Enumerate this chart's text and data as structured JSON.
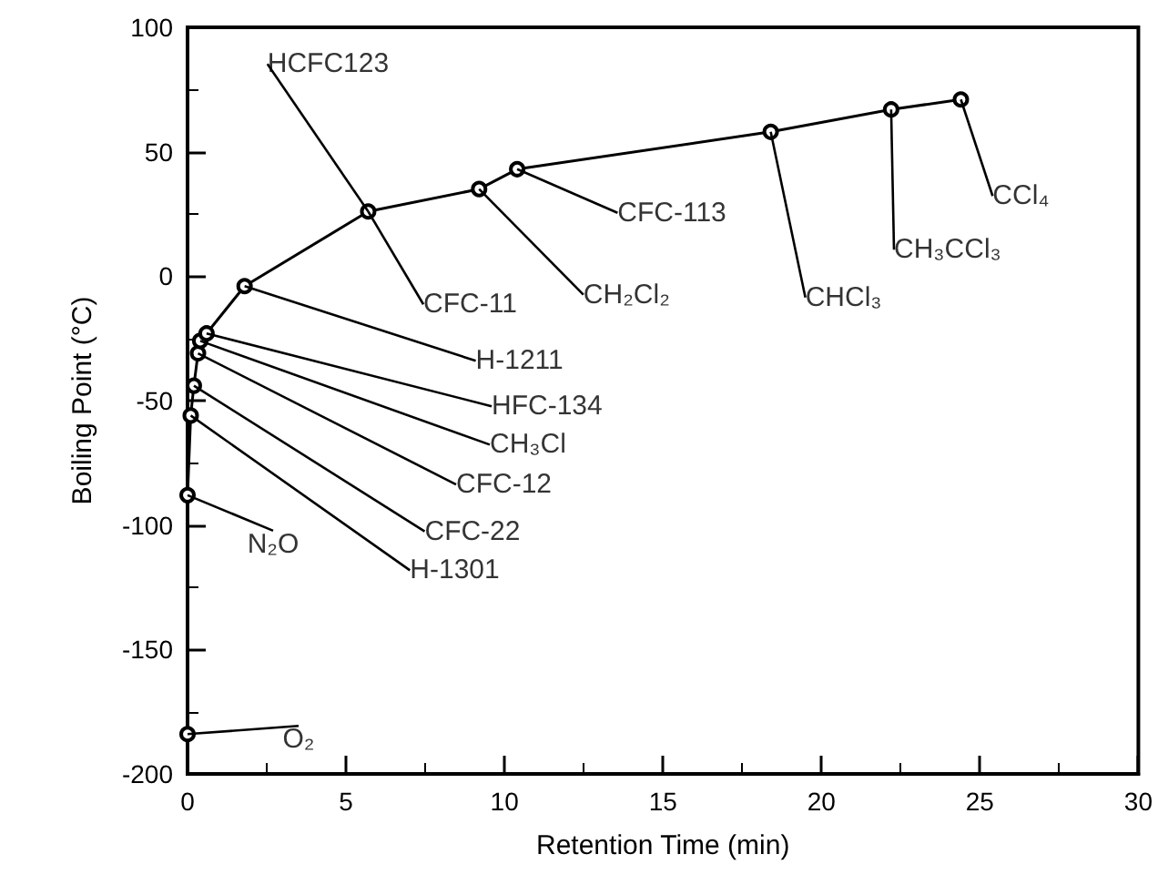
{
  "chart_data": {
    "type": "line",
    "xlabel": "Retention Time (min)",
    "ylabel": "Boiling Point (°C)",
    "x": [
      0,
      0,
      0.1,
      0.2,
      0.33,
      0.4,
      0.6,
      1.8,
      5.7,
      9.2,
      10.4,
      18.4,
      22.2,
      24.4
    ],
    "series": [
      {
        "color": "#000000",
        "values": [
          -184,
          -88,
          -56,
          -44,
          -31,
          -26,
          -23,
          -4,
          26,
          35,
          43,
          58,
          67,
          71
        ]
      }
    ],
    "marker": "circle",
    "line_style": "solid",
    "grid": false,
    "xlim": [
      0,
      30
    ],
    "xticks": [
      0,
      5,
      10,
      15,
      20,
      25,
      30
    ],
    "ylim": [
      -200,
      100
    ],
    "yticks": [
      -200,
      -150,
      -100,
      -50,
      0,
      50,
      100
    ],
    "annotations": [
      {
        "text": "O₂",
        "x": 0,
        "y": -184
      },
      {
        "text": "N₂O",
        "x": 0,
        "y": -88
      },
      {
        "text": "H-1301",
        "x": 0.1,
        "y": -56
      },
      {
        "text": "CFC-22",
        "x": 0.2,
        "y": -44
      },
      {
        "text": "CFC-12",
        "x": 0.33,
        "y": -31
      },
      {
        "text": "CH₃Cl",
        "x": 0.4,
        "y": -26
      },
      {
        "text": "HFC-134",
        "x": 0.6,
        "y": -23
      },
      {
        "text": "H-1211",
        "x": 1.8,
        "y": -4
      },
      {
        "text": "HCFC123",
        "x": 5.7,
        "y": 26
      },
      {
        "text": "CFC-11",
        "x": 5.7,
        "y": 26
      },
      {
        "text": "CH₂Cl₂",
        "x": 9.2,
        "y": 35
      },
      {
        "text": "CFC-113",
        "x": 10.4,
        "y": 43
      },
      {
        "text": "CHCl₃",
        "x": 18.4,
        "y": 58
      },
      {
        "text": "CH₃CCl₃",
        "x": 22.2,
        "y": 67
      },
      {
        "text": "CCl₄",
        "x": 24.4,
        "y": 71
      }
    ]
  }
}
